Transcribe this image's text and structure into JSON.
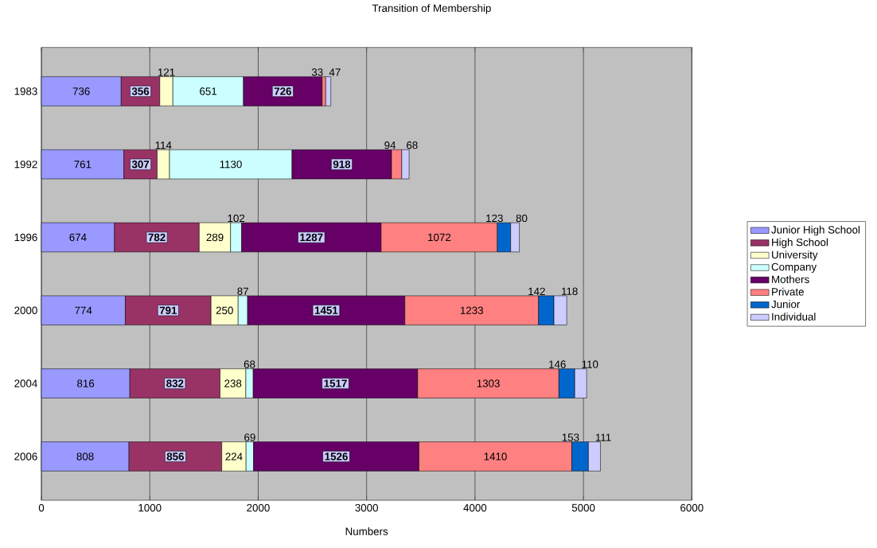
{
  "chart_data": {
    "type": "bar",
    "orientation": "horizontal",
    "stacked": true,
    "title": "Transition of Membership",
    "xlabel": "Numbers",
    "categories": [
      "1983",
      "1992",
      "1996",
      "2000",
      "2004",
      "2006"
    ],
    "series": [
      {
        "name": "Junior High School",
        "color": "#9999ff",
        "values": [
          736,
          761,
          674,
          774,
          816,
          808
        ]
      },
      {
        "name": "High School",
        "color": "#993366",
        "values": [
          356,
          307,
          782,
          791,
          832,
          856
        ]
      },
      {
        "name": "University",
        "color": "#ffffcc",
        "values": [
          121,
          114,
          289,
          250,
          238,
          224
        ]
      },
      {
        "name": "Company",
        "color": "#ccffff",
        "values": [
          651,
          1130,
          102,
          87,
          68,
          69
        ]
      },
      {
        "name": "Mothers",
        "color": "#660066",
        "values": [
          726,
          918,
          1287,
          1451,
          1517,
          1526
        ]
      },
      {
        "name": "Private",
        "color": "#ff8080",
        "values": [
          33,
          94,
          1072,
          1233,
          1303,
          1410
        ]
      },
      {
        "name": "Junior",
        "color": "#0066cc",
        "values": [
          null,
          null,
          123,
          142,
          146,
          153
        ]
      },
      {
        "name": "Individual",
        "color": "#ccccff",
        "values": [
          47,
          68,
          80,
          118,
          110,
          111
        ]
      }
    ],
    "xlim": [
      0,
      6000
    ],
    "xticks": [
      0,
      1000,
      2000,
      3000,
      4000,
      5000,
      6000
    ],
    "grid": "x",
    "legend": "right",
    "data_labels": true
  }
}
